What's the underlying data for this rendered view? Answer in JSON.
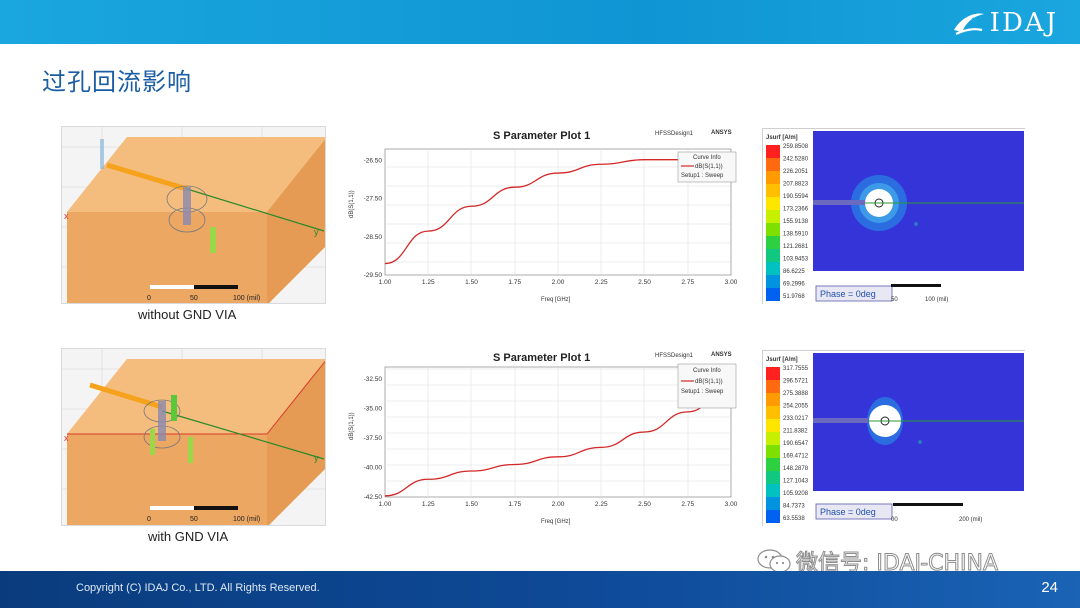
{
  "header": {
    "brand": "IDAJ"
  },
  "slide": {
    "title": "过孔回流影响",
    "page_number": "24"
  },
  "footer": {
    "copyright": "Copyright (C) IDAJ Co., LTD. All Rights Reserved."
  },
  "watermark": {
    "text": "微信号: IDAJ-CHINA"
  },
  "colors": {
    "topbar": "#1aa6de",
    "footer": "#0e4a98",
    "title": "#1a5da3",
    "curve": "#d42828",
    "field_bg": "#3434d8"
  },
  "rows": [
    {
      "caption": "without GND VIA",
      "scale_labels": [
        "0",
        "50",
        "100 (mil)"
      ],
      "plot": {
        "title": "S Parameter Plot 1",
        "design": "HFSSDesign1",
        "brand": "ANSYS",
        "legend_title": "Curve Info",
        "legend_series": "dB(S(1,1))",
        "legend_setup": "Setup1 : Sweep",
        "ylabel": "dB(S(1,1))",
        "xlabel": "Freq [GHz]"
      },
      "field": {
        "legend_title": "Jsurf [A/m]",
        "values": [
          "259.8508",
          "242.5280",
          "226.2051",
          "207.8823",
          "190.5594",
          "173.2366",
          "155.9138",
          "138.5910",
          "121.2681",
          "103.9453",
          "86.6225",
          "69.2996",
          "51.9768"
        ],
        "phase": "Phase = 0deg",
        "scale_labels": [
          "50",
          "100 (mil)"
        ]
      }
    },
    {
      "caption": "with GND VIA",
      "scale_labels": [
        "0",
        "50",
        "100 (mil)"
      ],
      "plot": {
        "title": "S Parameter Plot 1",
        "design": "HFSSDesign1",
        "brand": "ANSYS",
        "legend_title": "Curve Info",
        "legend_series": "dB(S(1,1))",
        "legend_setup": "Setup1 : Sweep",
        "ylabel": "dB(S(1,1))",
        "xlabel": "Freq [GHz]"
      },
      "field": {
        "legend_title": "Jsurf [A/m]",
        "values": [
          "317.7555",
          "296.5721",
          "275.3888",
          "254.2055",
          "233.0217",
          "211.8382",
          "190.6547",
          "169.4712",
          "148.2878",
          "127.1043",
          "105.9208",
          "84.7373",
          "63.5538"
        ],
        "phase": "Phase = 0deg",
        "scale_labels": [
          "00",
          "200 (mil)"
        ]
      }
    }
  ],
  "chart_data": [
    {
      "type": "line",
      "title": "S Parameter Plot 1",
      "xlabel": "Freq [GHz]",
      "ylabel": "dB(S(1,1))",
      "xlim": [
        1.0,
        3.0
      ],
      "ylim": [
        -29.5,
        -26.2
      ],
      "xticks": [
        "1.00",
        "1.25",
        "1.50",
        "1.75",
        "2.00",
        "2.25",
        "2.50",
        "2.75",
        "3.00"
      ],
      "yticks": [
        "-26.50",
        "-27.50",
        "-28.50",
        "-29.50"
      ],
      "legend_position": "top-right",
      "grid": true,
      "series": [
        {
          "name": "dB(S(1,1))",
          "x": [
            1.0,
            1.25,
            1.5,
            1.75,
            2.0,
            2.25,
            2.5,
            2.75,
            3.0
          ],
          "y": [
            -29.2,
            -28.35,
            -27.7,
            -27.2,
            -26.83,
            -26.6,
            -26.48,
            -26.48,
            -26.55
          ]
        }
      ]
    },
    {
      "type": "line",
      "title": "S Parameter Plot 1",
      "xlabel": "Freq [GHz]",
      "ylabel": "dB(S(1,1))",
      "xlim": [
        1.0,
        3.0
      ],
      "ylim": [
        -42.5,
        -31.5
      ],
      "xticks": [
        "1.00",
        "1.25",
        "1.50",
        "1.75",
        "2.00",
        "2.25",
        "2.50",
        "2.75",
        "3.00"
      ],
      "yticks": [
        "-32.50",
        "-35.00",
        "-37.50",
        "-40.00",
        "-42.50"
      ],
      "legend_position": "top-right",
      "grid": true,
      "series": [
        {
          "name": "dB(S(1,1))",
          "x": [
            1.0,
            1.25,
            1.5,
            1.75,
            2.0,
            2.25,
            2.5,
            2.75,
            3.0
          ],
          "y": [
            -42.4,
            -41.0,
            -40.3,
            -39.75,
            -39.1,
            -38.3,
            -37.0,
            -35.3,
            -33.0
          ]
        }
      ]
    }
  ]
}
